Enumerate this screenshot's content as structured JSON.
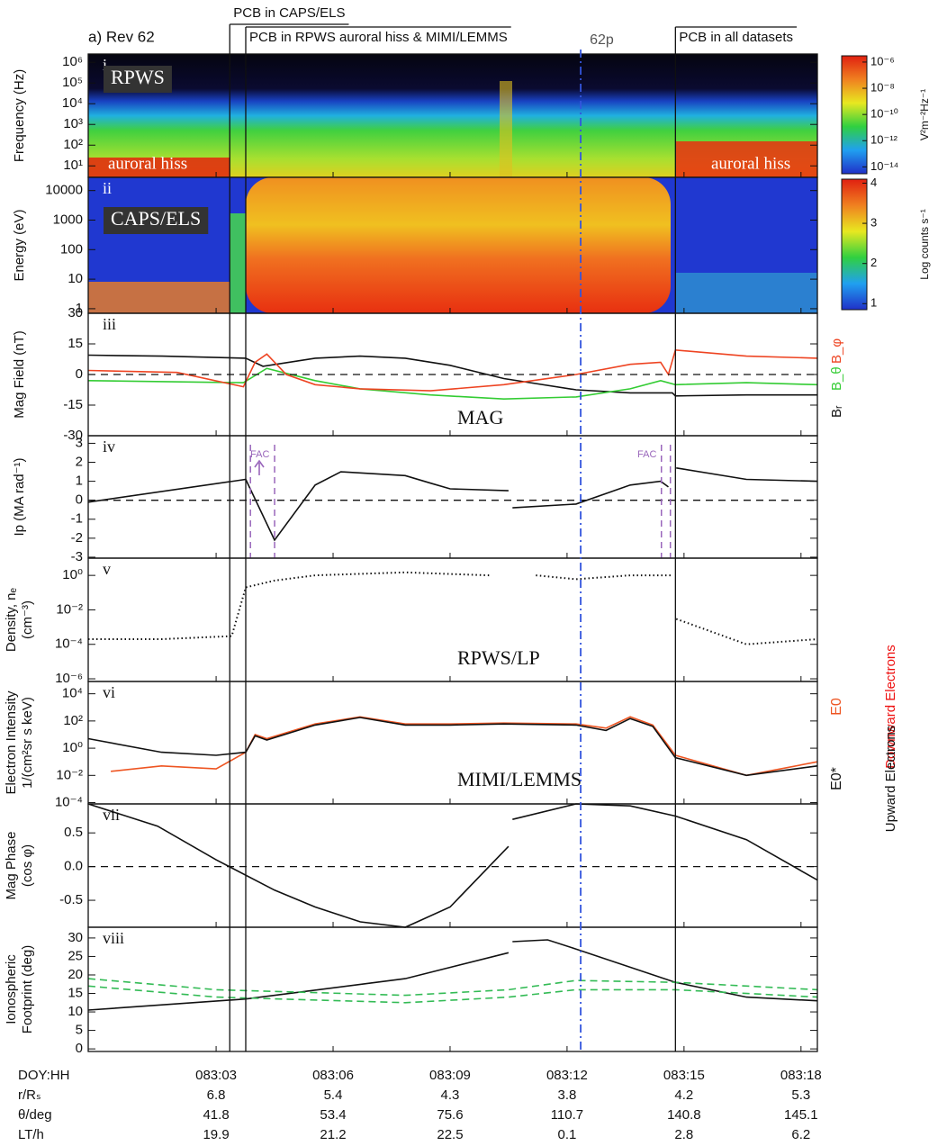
{
  "figure": {
    "label": "a) Rev 62",
    "xlim": [
      -0.28,
      18.42
    ],
    "x_label": "DOY:HH",
    "xticks": [
      {
        "value": 3,
        "label": "083:03"
      },
      {
        "value": 6,
        "label": "083:06"
      },
      {
        "value": 9,
        "label": "083:09"
      },
      {
        "value": 12,
        "label": "083:12"
      },
      {
        "value": 15,
        "label": "083:15"
      },
      {
        "value": 18,
        "label": "083:18"
      }
    ],
    "ephemeris": [
      {
        "label": "r/Rₛ",
        "values": [
          6.8,
          5.4,
          4.3,
          3.8,
          4.2,
          5.3
        ]
      },
      {
        "label": "θ/deg",
        "values": [
          41.8,
          53.4,
          75.6,
          110.7,
          140.8,
          145.1
        ]
      },
      {
        "label": "LT/h",
        "values": [
          19.9,
          21.2,
          22.5,
          0.1,
          2.8,
          6.2
        ]
      }
    ],
    "boundaries": [
      {
        "x": 3.35,
        "label": "PCB in CAPS/ELS"
      },
      {
        "x": 3.76,
        "label": "PCB in RPWS auroral hiss & MIMI/LEMMS"
      },
      {
        "x": 14.78,
        "label": "PCB in all datasets"
      }
    ],
    "orbit_marker": {
      "x": 12.35,
      "label": "62p",
      "color": "#3355dd"
    }
  },
  "chart_data": [
    {
      "type": "spectrogram",
      "label": "i",
      "instrument": "RPWS",
      "ylabel": [
        "Frequency (Hz)"
      ],
      "log": true,
      "ylim": [
        2.8,
        2500000
      ],
      "yticks": [
        {
          "value": 10,
          "label": "10¹"
        },
        {
          "value": 100,
          "label": "10²"
        },
        {
          "value": 1000,
          "label": "10³"
        },
        {
          "value": 10000,
          "label": "10⁴"
        },
        {
          "value": 100000,
          "label": "10⁵"
        },
        {
          "value": 1000000,
          "label": "10⁶"
        }
      ],
      "annotations": [
        "auroral hiss",
        "auroral hiss"
      ],
      "colorbar": {
        "label": "V²m⁻²Hz⁻¹",
        "log": true,
        "lim": [
          3e-15,
          3e-06
        ],
        "ticks": [
          {
            "value": 1e-14,
            "label": "10⁻¹⁴"
          },
          {
            "value": 1e-12,
            "label": "10⁻¹²"
          },
          {
            "value": 1e-10,
            "label": "10⁻¹⁰"
          },
          {
            "value": 1e-08,
            "label": "10⁻⁸"
          },
          {
            "value": 1e-06,
            "label": "10⁻⁶"
          }
        ]
      }
    },
    {
      "type": "spectrogram",
      "label": "ii",
      "instrument": "CAPS/ELS",
      "ylabel": [
        "Energy (eV)"
      ],
      "log": true,
      "ylim": [
        0.7,
        28000
      ],
      "yticks": [
        1,
        10,
        100,
        1000,
        10000
      ],
      "colorbar": {
        "label": "Log counts s⁻¹",
        "log": false,
        "lim": [
          0.85,
          4.1
        ],
        "ticks": [
          1,
          2,
          3,
          4
        ]
      }
    },
    {
      "type": "line",
      "label": "iii",
      "instrument": "MAG",
      "ylabel": [
        "Mag Field (nT)"
      ],
      "log": false,
      "zero_line": true,
      "ylim": [
        -30,
        30
      ],
      "yticks": [
        -30,
        -15,
        0,
        15,
        30
      ],
      "series": [
        {
          "name": "Bᵣ",
          "color": "#111111",
          "style": "solid",
          "x": [
            -0.28,
            1.62,
            3.76,
            4.2,
            5.54,
            6.69,
            7.85,
            9.0,
            10.38,
            12.23,
            13.62,
            14.7,
            14.78,
            16.6,
            18.42
          ],
          "values": [
            9.5,
            9,
            8,
            4,
            8,
            9,
            8,
            4.5,
            -2,
            -7.5,
            -9,
            -9,
            -10.5,
            -10,
            -10
          ]
        },
        {
          "name": "B_θ",
          "color": "#33cc33",
          "style": "solid",
          "x": [
            -0.28,
            3.7,
            4.3,
            5.54,
            6.69,
            8.5,
            10.38,
            12.23,
            13.62,
            14.4,
            14.78,
            16.6,
            18.42
          ],
          "values": [
            -3,
            -4,
            3,
            -3,
            -7,
            -10,
            -12,
            -11,
            -7,
            -3,
            -5,
            -4,
            -5
          ]
        },
        {
          "name": "B_φ",
          "color": "#ee4422",
          "style": "solid",
          "x": [
            -0.28,
            2.0,
            3.7,
            4.0,
            4.3,
            4.8,
            5.54,
            6.69,
            8.5,
            10.38,
            12.23,
            13.62,
            14.4,
            14.6,
            14.78,
            16.6,
            18.42
          ],
          "values": [
            2,
            1,
            -6,
            6,
            10,
            0,
            -5,
            -7,
            -8,
            -5,
            0,
            5,
            6,
            0,
            12,
            9,
            8
          ]
        }
      ]
    },
    {
      "type": "line",
      "label": "iv",
      "ylabel": [
        "Ip (MA rad⁻¹)"
      ],
      "log": false,
      "zero_line": true,
      "ylim": [
        -3.05,
        3.4
      ],
      "yticks": [
        -3,
        -2,
        -1,
        0,
        1,
        2,
        3
      ],
      "fac_lines": [
        3.88,
        4.5,
        14.42,
        14.65
      ],
      "annotations": [
        "FAC",
        "FAC"
      ],
      "series": [
        {
          "color": "#111111",
          "style": "solid",
          "x": [
            -0.28,
            3.76,
            4.5,
            5.54,
            6.2,
            7.85,
            8.5,
            9.0,
            10.5,
            null,
            10.6,
            12.23,
            13.62,
            14.4,
            14.6,
            null,
            14.8,
            16.6,
            18.42
          ],
          "values": [
            -0.1,
            1.1,
            -2.1,
            0.8,
            1.5,
            1.3,
            0.9,
            0.6,
            0.5,
            null,
            -0.4,
            -0.2,
            0.8,
            1.0,
            0.7,
            null,
            1.7,
            1.1,
            1.0
          ]
        }
      ]
    },
    {
      "type": "line",
      "label": "v",
      "instrument": "RPWS/LP",
      "ylabel": [
        "Density, nₑ",
        "(cm⁻³)"
      ],
      "log": true,
      "ylim": [
        7e-07,
        10
      ],
      "yticks": [
        {
          "value": 1e-06,
          "label": "10⁻⁶"
        },
        {
          "value": 0.0001,
          "label": "10⁻⁴"
        },
        {
          "value": 0.01,
          "label": "10⁻²"
        },
        {
          "value": 1,
          "label": "10⁰"
        }
      ],
      "series": [
        {
          "color": "#111111",
          "style": "dotted",
          "x": [
            -0.28,
            1.6,
            3.4,
            3.76,
            4.5,
            5.54,
            7.85,
            9.0,
            10.0,
            null,
            11.2,
            12.23,
            13.62,
            14.7,
            null,
            14.8,
            16.6,
            18.42
          ],
          "values": [
            0.0002,
            0.0002,
            0.0003,
            0.2,
            0.5,
            1,
            1.5,
            1.2,
            1,
            null,
            1,
            0.6,
            1,
            1,
            null,
            0.003,
            0.0001,
            0.0002
          ]
        }
      ]
    },
    {
      "type": "line",
      "label": "vi",
      "instrument": "MIMI/LEMMS",
      "ylabel": [
        "Electron Intensity",
        "1/(cm²sr s keV)"
      ],
      "log": true,
      "ylim": [
        8e-05,
        80000
      ],
      "yticks": [
        {
          "value": 0.0001,
          "label": "10⁻⁴"
        },
        {
          "value": 0.01,
          "label": "10⁻²"
        },
        {
          "value": 1,
          "label": "10⁰"
        },
        {
          "value": 100,
          "label": "10²"
        },
        {
          "value": 10000,
          "label": "10⁴"
        }
      ],
      "series": [
        {
          "name": "E0",
          "description": "Downward Electrons",
          "color": "#ee5522",
          "style": "solid",
          "x": [
            0.3,
            1.6,
            3.0,
            3.76,
            4.0,
            4.3,
            5.54,
            6.69,
            7.85,
            9.0,
            10.38,
            12.23,
            13.0,
            13.62,
            14.2,
            14.78,
            16.6,
            18.42
          ],
          "values": [
            0.02,
            0.05,
            0.03,
            0.5,
            10,
            5,
            60,
            200,
            60,
            60,
            70,
            60,
            30,
            200,
            50,
            0.3,
            0.01,
            0.1
          ]
        },
        {
          "name": "E0*",
          "description": "Upward Electrons",
          "color": "#111111",
          "style": "solid",
          "x": [
            -0.28,
            1.6,
            3.0,
            3.76,
            4.0,
            4.3,
            5.54,
            6.69,
            7.85,
            9.0,
            10.38,
            12.23,
            13.0,
            13.62,
            14.2,
            14.78,
            16.6,
            18.42
          ],
          "values": [
            5,
            0.5,
            0.3,
            0.5,
            8,
            4,
            50,
            180,
            50,
            50,
            60,
            50,
            20,
            150,
            40,
            0.2,
            0.01,
            0.05
          ]
        }
      ]
    },
    {
      "type": "line",
      "label": "vii",
      "ylabel": [
        "Mag Phase",
        "(cos φ)"
      ],
      "log": false,
      "zero_line": true,
      "ylim": [
        -0.9,
        0.93
      ],
      "yticks": [
        -0.5,
        {
          "value": 0,
          "label": "0.0"
        },
        0.5
      ],
      "series": [
        {
          "color": "#111111",
          "style": "solid",
          "x": [
            -0.28,
            1.5,
            3.0,
            4.5,
            5.54,
            6.7,
            7.85,
            9.0,
            10.5,
            null,
            10.6,
            12.23,
            13.62,
            14.78,
            16.6,
            18.42
          ],
          "values": [
            0.93,
            0.6,
            0.1,
            -0.35,
            -0.6,
            -0.82,
            -0.9,
            -0.6,
            0.3,
            null,
            0.7,
            0.93,
            0.9,
            0.75,
            0.4,
            -0.2
          ]
        }
      ]
    },
    {
      "type": "line",
      "label": "viii",
      "ylabel": [
        "Ionospheric",
        "Footprint (deg)"
      ],
      "log": false,
      "ylim": [
        -0.7,
        32.9
      ],
      "yticks": [
        0,
        5,
        10,
        15,
        20,
        25,
        30
      ],
      "series": [
        {
          "color": "#111111",
          "style": "solid",
          "x": [
            -0.28,
            3.76,
            7.85,
            10.5,
            null,
            10.6,
            11.5,
            12.23,
            14.78,
            16.6,
            18.42
          ],
          "values": [
            10.5,
            13.5,
            19,
            26,
            null,
            29,
            29.5,
            27,
            18,
            14,
            13
          ]
        },
        {
          "color": "#33bb55",
          "style": "dashed",
          "x": [
            -0.28,
            3.0,
            7.85,
            10.5,
            12.23,
            14.78,
            18.42
          ],
          "values": [
            19,
            16,
            14.5,
            16,
            18.5,
            18,
            16
          ]
        },
        {
          "color": "#33bb55",
          "style": "dashed",
          "x": [
            -0.28,
            3.0,
            7.85,
            10.5,
            12.23,
            14.78,
            18.42
          ],
          "values": [
            17,
            14,
            12.5,
            14,
            16,
            16,
            14
          ]
        }
      ]
    }
  ]
}
